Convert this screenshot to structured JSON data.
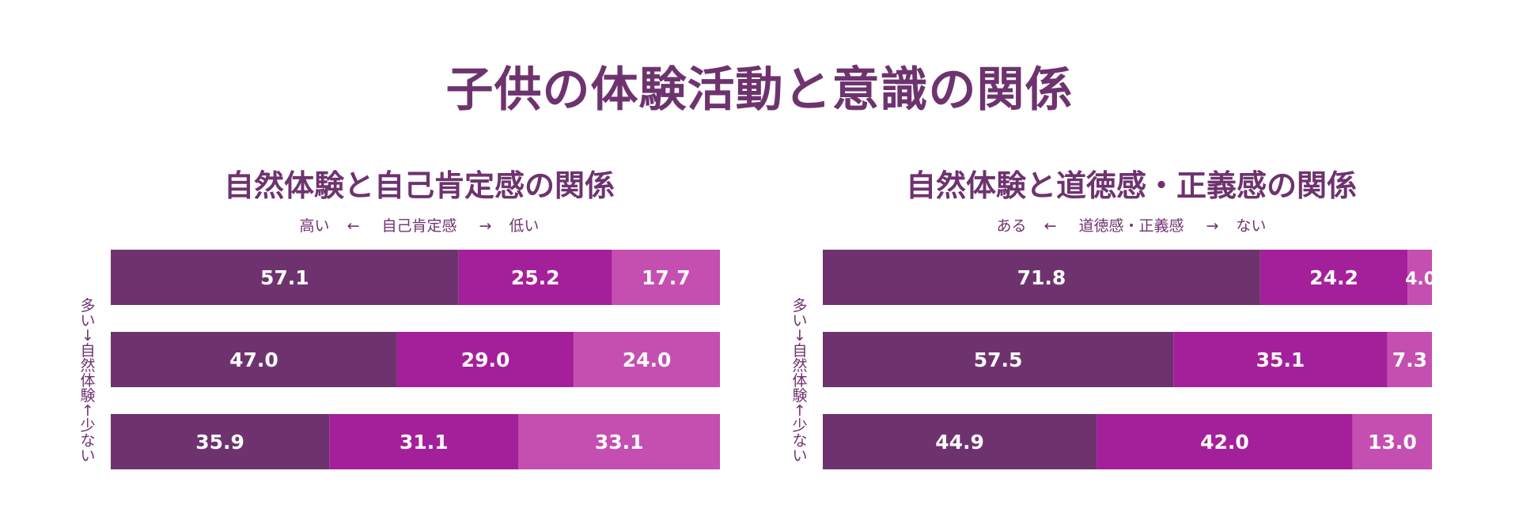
{
  "title": "子供の体験活動と意識の関係",
  "colors": {
    "seg1": "#6e336f",
    "seg2": "#a4209a",
    "seg3": "#c44fb0",
    "text": "#6e336f",
    "label": "#ffffff"
  },
  "chart_data": [
    {
      "type": "bar",
      "stacked": "horizontal-100",
      "title": "自然体験と自己肯定感の関係",
      "scale": {
        "left": "高い",
        "left_arrow": "←",
        "center": "自己肯定感",
        "right_arrow": "→",
        "right": "低い"
      },
      "axis_chars": [
        "多",
        "い",
        "↓",
        "自",
        "然",
        "体",
        "験",
        "↑",
        "少",
        "な",
        "い"
      ],
      "rows": [
        [
          57.1,
          25.2,
          17.7
        ],
        [
          47.0,
          29.0,
          24.0
        ],
        [
          35.9,
          31.1,
          33.1
        ]
      ],
      "labels": [
        [
          "57.1",
          "25.2",
          "17.7"
        ],
        [
          "47.0",
          "29.0",
          "24.0"
        ],
        [
          "35.9",
          "31.1",
          "33.1"
        ]
      ]
    },
    {
      "type": "bar",
      "stacked": "horizontal-100",
      "title": "自然体験と道徳感・正義感の関係",
      "scale": {
        "left": "ある",
        "left_arrow": "←",
        "center": "道徳感・正義感",
        "right_arrow": "→",
        "right": "ない"
      },
      "axis_chars": [
        "多",
        "い",
        "↓",
        "自",
        "然",
        "体",
        "験",
        "↑",
        "少",
        "な",
        "い"
      ],
      "rows": [
        [
          71.8,
          24.2,
          4.0
        ],
        [
          57.5,
          35.1,
          7.3
        ],
        [
          44.9,
          42.0,
          13.0
        ]
      ],
      "labels": [
        [
          "71.8",
          "24.2",
          "4.0"
        ],
        [
          "57.5",
          "35.1",
          "7.3"
        ],
        [
          "44.9",
          "42.0",
          "13.0"
        ]
      ]
    }
  ]
}
